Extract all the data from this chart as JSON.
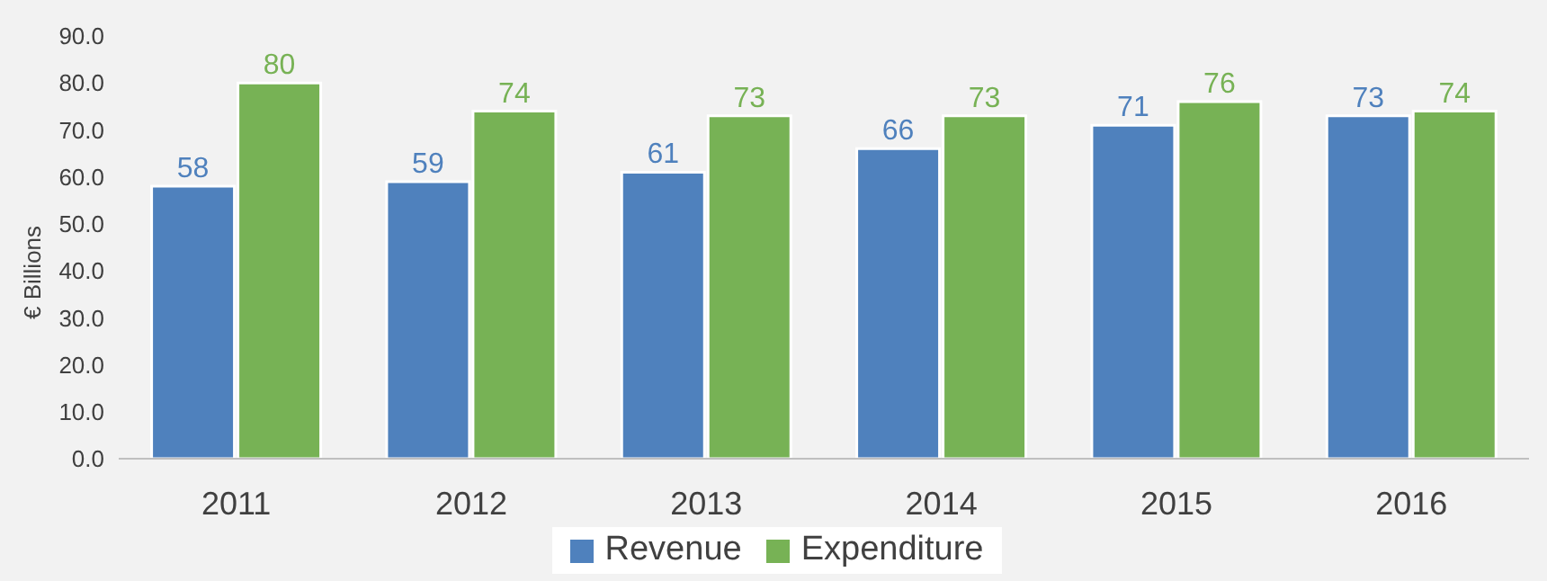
{
  "chart_data": {
    "type": "bar",
    "ylabel": "€ Billions",
    "categories": [
      "2011",
      "2012",
      "2013",
      "2014",
      "2015",
      "2016"
    ],
    "series": [
      {
        "name": "Revenue",
        "color": "#4f81bd",
        "values": [
          58,
          59,
          61,
          66,
          71,
          73
        ]
      },
      {
        "name": "Expenditure",
        "color": "#77b255",
        "values": [
          80,
          74,
          73,
          73,
          76,
          74
        ]
      }
    ],
    "ylim": [
      0,
      90
    ],
    "yticks": [
      {
        "value": 0,
        "label": "0.0"
      },
      {
        "value": 10,
        "label": "10.0"
      },
      {
        "value": 20,
        "label": "20.0"
      },
      {
        "value": 30,
        "label": "30.0"
      },
      {
        "value": 40,
        "label": "40.0"
      },
      {
        "value": 50,
        "label": "50.0"
      },
      {
        "value": 60,
        "label": "60.0"
      },
      {
        "value": 70,
        "label": "70.0"
      },
      {
        "value": 80,
        "label": "80.0"
      },
      {
        "value": 90,
        "label": "90.0"
      }
    ],
    "grid": false,
    "legend": "bottom",
    "data_labels": true
  }
}
